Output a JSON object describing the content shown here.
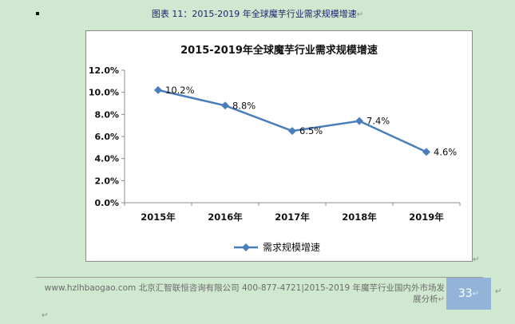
{
  "caption": "图表  11：2015-2019 年全球魔芋行业需求规模增速",
  "para_mark": "↵",
  "chart_data": {
    "type": "line",
    "title": "2015-2019年全球魔芋行业需求规模增速",
    "categories": [
      "2015年",
      "2016年",
      "2017年",
      "2018年",
      "2019年"
    ],
    "series": [
      {
        "name": "需求规模增速",
        "values": [
          10.2,
          8.8,
          6.5,
          7.4,
          4.6
        ],
        "labels": [
          "10.2%",
          "8.8%",
          "6.5%",
          "7.4%",
          "4.6%"
        ],
        "color": "#4a7ebb"
      }
    ],
    "ylim": [
      0,
      12
    ],
    "yticks": [
      "0.0%",
      "2.0%",
      "4.0%",
      "6.0%",
      "8.0%",
      "10.0%",
      "12.0%"
    ],
    "grid": false,
    "legend": "bottom"
  },
  "footer": {
    "url": "www.hzlhbaogao.com",
    "company": "北京汇智联恒咨询有限公司",
    "phone": "400-877-4721",
    "report": "2015-2019 年魔芋行业国内外市场发展分析",
    "page": "33"
  }
}
